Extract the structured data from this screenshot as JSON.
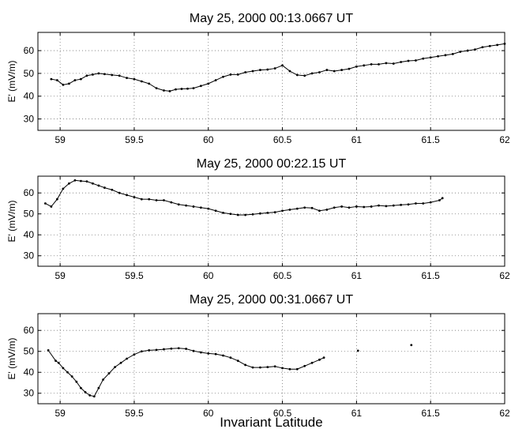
{
  "chart_data": [
    {
      "type": "scatter",
      "title": "May 25, 2000  00:13.0667 UT",
      "xlabel": "",
      "ylabel": "E' (mV/m)",
      "xlim": [
        58.85,
        62
      ],
      "ylim": [
        25,
        68
      ],
      "xticks": [
        59,
        59.5,
        60,
        60.5,
        61,
        61.5,
        62
      ],
      "yticks": [
        30,
        40,
        50,
        60
      ],
      "grid": true,
      "x": [
        58.94,
        58.98,
        59.02,
        59.06,
        59.1,
        59.14,
        59.18,
        59.22,
        59.26,
        59.3,
        59.35,
        59.4,
        59.45,
        59.5,
        59.55,
        59.6,
        59.65,
        59.7,
        59.74,
        59.78,
        59.82,
        59.86,
        59.9,
        59.95,
        60.0,
        60.05,
        60.1,
        60.15,
        60.2,
        60.25,
        60.3,
        60.35,
        60.4,
        60.45,
        60.5,
        60.55,
        60.6,
        60.65,
        60.7,
        60.75,
        60.8,
        60.85,
        60.9,
        60.95,
        61.0,
        61.05,
        61.1,
        61.15,
        61.2,
        61.25,
        61.3,
        61.35,
        61.4,
        61.45,
        61.5,
        61.55,
        61.6,
        61.65,
        61.7,
        61.75,
        61.8,
        61.85,
        61.9,
        61.95,
        62.0
      ],
      "y": [
        47.5,
        47,
        45,
        45.5,
        47,
        47.5,
        49,
        49.5,
        50,
        49.7,
        49.3,
        49,
        48,
        47.5,
        46.5,
        45.5,
        43.5,
        42.5,
        42.2,
        43,
        43.2,
        43.3,
        43.5,
        44.5,
        45.5,
        47,
        48.5,
        49.5,
        49.5,
        50.5,
        51,
        51.5,
        51.7,
        52.2,
        53.5,
        51,
        49.3,
        49,
        50,
        50.5,
        51.5,
        51,
        51.5,
        52,
        53,
        53.5,
        54,
        54,
        54.5,
        54.3,
        55,
        55.5,
        55.7,
        56.5,
        57,
        57.5,
        58,
        58.5,
        59.5,
        60,
        60.5,
        61.5,
        62,
        62.5,
        63
      ]
    },
    {
      "type": "scatter",
      "title": "May 25, 2000  00:22.15 UT",
      "xlabel": "",
      "ylabel": "E' (mV/m)",
      "xlim": [
        58.85,
        62
      ],
      "ylim": [
        25,
        68
      ],
      "xticks": [
        59,
        59.5,
        60,
        60.5,
        61,
        61.5,
        62
      ],
      "yticks": [
        30,
        40,
        50,
        60
      ],
      "grid": true,
      "x": [
        58.9,
        58.94,
        58.98,
        59.02,
        59.06,
        59.1,
        59.14,
        59.18,
        59.22,
        59.26,
        59.3,
        59.35,
        59.4,
        59.45,
        59.5,
        59.55,
        59.6,
        59.65,
        59.7,
        59.75,
        59.8,
        59.85,
        59.9,
        59.95,
        60.0,
        60.05,
        60.1,
        60.15,
        60.2,
        60.25,
        60.3,
        60.35,
        60.4,
        60.45,
        60.5,
        60.55,
        60.6,
        60.65,
        60.7,
        60.75,
        60.8,
        60.85,
        60.9,
        60.95,
        61.0,
        61.05,
        61.1,
        61.15,
        61.2,
        61.25,
        61.3,
        61.35,
        61.4,
        61.45,
        61.5,
        61.56,
        61.58
      ],
      "y": [
        55,
        53.5,
        57,
        62,
        64.5,
        66,
        65.7,
        65.5,
        64.5,
        63.5,
        62.5,
        61.5,
        60,
        59,
        58,
        57,
        57,
        56.5,
        56.5,
        55.5,
        54.5,
        54,
        53.5,
        53,
        52.5,
        51.5,
        50.5,
        50,
        49.5,
        49.5,
        49.8,
        50.2,
        50.5,
        50.8,
        51.5,
        52,
        52.5,
        53,
        52.8,
        51.5,
        52,
        53,
        53.5,
        53,
        53.5,
        53.3,
        53.5,
        54,
        53.7,
        54,
        54.3,
        54.5,
        55,
        55,
        55.5,
        56.5,
        57.5
      ]
    },
    {
      "type": "scatter",
      "title": "May 25, 2000  00:31.0667 UT",
      "xlabel": "Invariant Latitude",
      "ylabel": "E' (mV/m)",
      "xlim": [
        58.85,
        62
      ],
      "ylim": [
        25,
        68
      ],
      "xticks": [
        59,
        59.5,
        60,
        60.5,
        61,
        61.5,
        62
      ],
      "yticks": [
        30,
        40,
        50,
        60
      ],
      "grid": true,
      "x": [
        58.92,
        58.97,
        58.99,
        59.02,
        59.05,
        59.08,
        59.11,
        59.14,
        59.17,
        59.2,
        59.23,
        59.26,
        59.29,
        59.33,
        59.37,
        59.41,
        59.45,
        59.5,
        59.55,
        59.6,
        59.65,
        59.7,
        59.75,
        59.8,
        59.85,
        59.9,
        59.95,
        60.0,
        60.05,
        60.1,
        60.15,
        60.2,
        60.25,
        60.3,
        60.35,
        60.4,
        60.45,
        60.5,
        60.55,
        60.6,
        60.65,
        60.7,
        60.75,
        60.78,
        61.01,
        61.37
      ],
      "y": [
        50.5,
        45.5,
        44.5,
        42,
        40,
        38,
        35.5,
        32.5,
        30.5,
        29,
        28.5,
        32.5,
        36.5,
        39.5,
        42.5,
        44.5,
        46.5,
        48.5,
        50,
        50.5,
        50.7,
        51,
        51.3,
        51.5,
        51.2,
        50.2,
        49.5,
        49,
        48.7,
        48,
        47,
        45.5,
        43.5,
        42.3,
        42.3,
        42.5,
        42.8,
        42,
        41.5,
        41.5,
        43,
        44.5,
        46,
        47,
        50.3,
        53
      ]
    }
  ]
}
